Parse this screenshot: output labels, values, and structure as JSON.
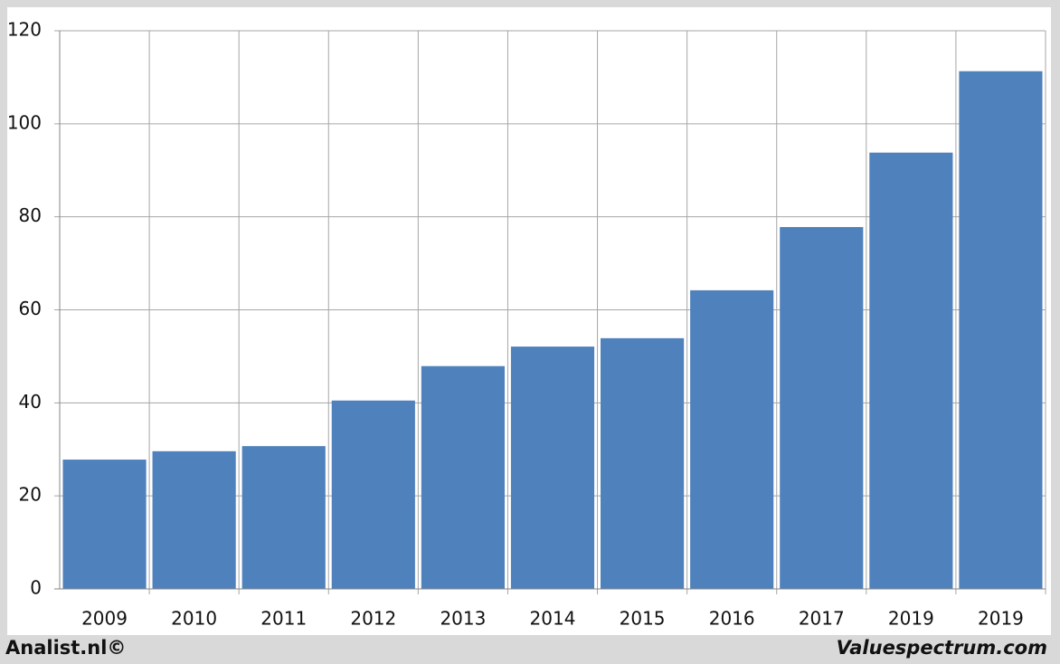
{
  "chart_data": {
    "type": "bar",
    "categories": [
      "2009",
      "2010",
      "2011",
      "2012",
      "2013",
      "2014",
      "2015",
      "2016",
      "2017",
      "2019",
      "2019"
    ],
    "values": [
      27.8,
      29.6,
      30.7,
      40.5,
      47.9,
      52.1,
      53.9,
      64.2,
      77.8,
      93.8,
      111.3
    ],
    "color": "#4f81bd",
    "ylim": [
      0,
      120
    ],
    "yticks": [
      0,
      20,
      40,
      60,
      80,
      100,
      120
    ],
    "grid": true,
    "credits": [
      "Analist.nl©",
      "Valuespectrum.com"
    ]
  }
}
